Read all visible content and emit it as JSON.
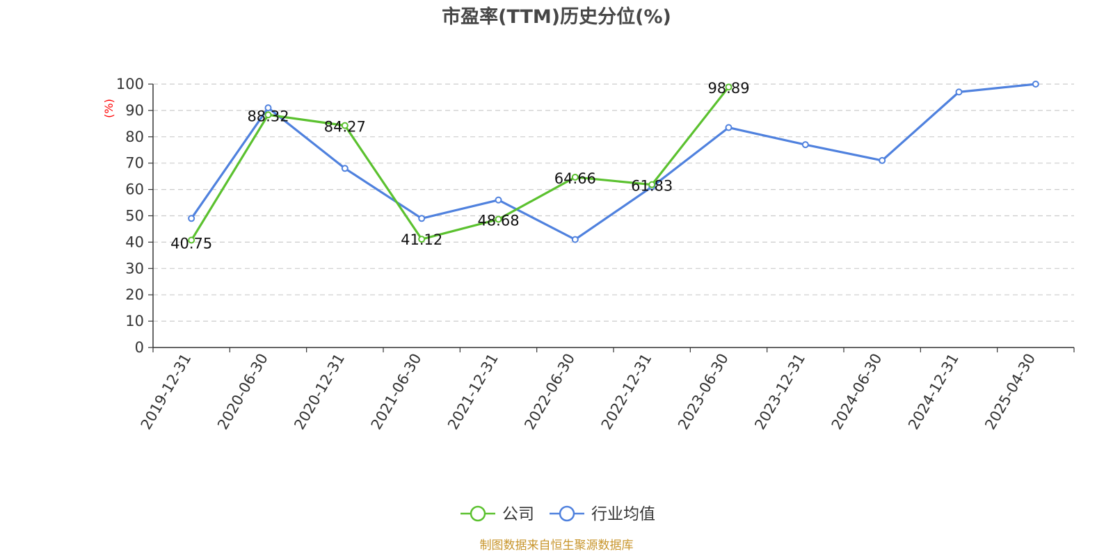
{
  "chart_data": {
    "type": "line",
    "title": "市盈率(TTM)历史分位(%)",
    "ylabel": "(%)",
    "xlabel": "",
    "ylim": [
      0,
      100
    ],
    "yticks": [
      0,
      10,
      20,
      30,
      40,
      50,
      60,
      70,
      80,
      90,
      100
    ],
    "grid": true,
    "legend_position": "bottom-center",
    "categories": [
      "2019-12-31",
      "2020-06-30",
      "2020-12-31",
      "2021-06-30",
      "2021-12-31",
      "2022-06-30",
      "2022-12-31",
      "2023-06-30",
      "2023-12-31",
      "2024-06-30",
      "2024-12-31",
      "2025-04-30"
    ],
    "series": [
      {
        "name": "公司",
        "color": "#5bc12f",
        "values": [
          40.75,
          88.32,
          84.27,
          41.12,
          48.68,
          64.66,
          61.83,
          98.89,
          null,
          null,
          null,
          null
        ],
        "data_labels": [
          "40.75",
          "88.32",
          "84.27",
          "41.12",
          "48.68",
          "64.66",
          "61.83",
          "98.89"
        ]
      },
      {
        "name": "行业均值",
        "color": "#4f81de",
        "values": [
          49,
          91,
          68,
          49,
          56,
          41,
          61,
          83.5,
          77,
          71,
          97,
          100
        ]
      }
    ]
  },
  "source": {
    "text": "制图数据来自恒生聚源数据库",
    "color": "#c8962d"
  },
  "colors": {
    "unit_label": "#ff0000",
    "axis": "#333333",
    "grid": "#cccccc"
  }
}
